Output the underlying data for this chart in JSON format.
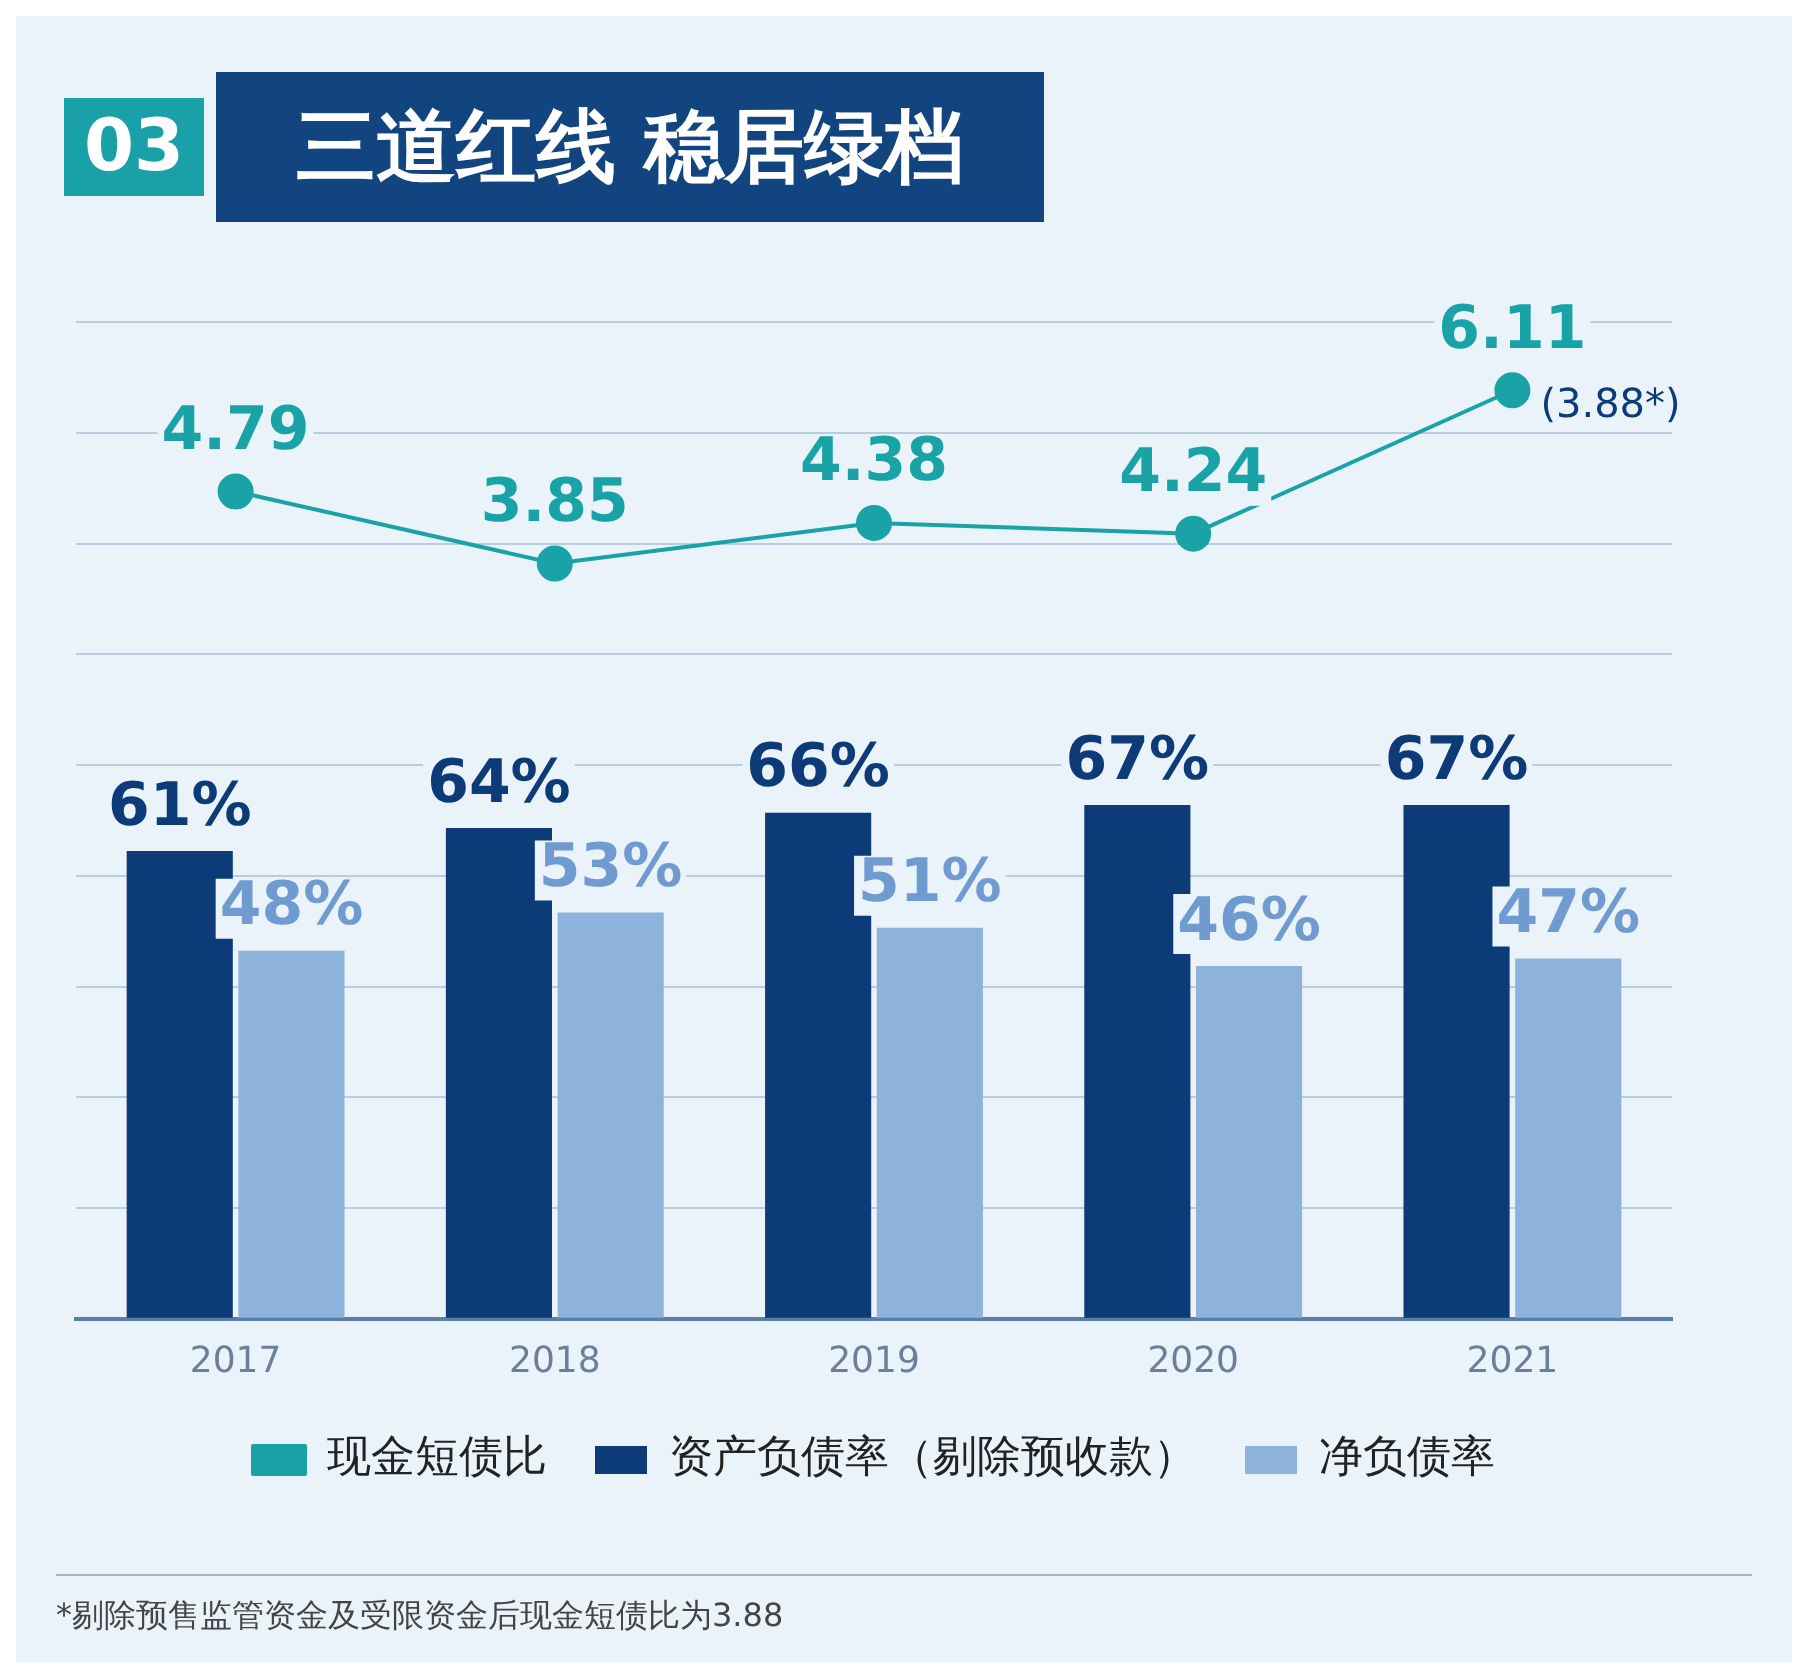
{
  "chart_data": {
    "type": "bar",
    "title": "三道红线 稳居绿档",
    "categories": [
      "2017",
      "2018",
      "2019",
      "2020",
      "2021"
    ],
    "series": [
      {
        "name": "资产负债率（剔除预收款）",
        "color": "#0d3b78",
        "values": [
          61,
          64,
          66,
          67,
          67
        ],
        "value_labels": [
          "61%",
          "64%",
          "66%",
          "67%",
          "67%"
        ]
      },
      {
        "name": "净负债率",
        "color": "#8db3dc",
        "values": [
          48,
          53,
          51,
          46,
          47
        ],
        "value_labels": [
          "48%",
          "53%",
          "51%",
          "46%",
          "47%"
        ]
      },
      {
        "name": "现金短债比",
        "type": "line",
        "axis": "y2",
        "color": "#19a3a6",
        "values": [
          4.79,
          3.85,
          4.38,
          4.24,
          6.11
        ],
        "value_labels": [
          "4.79",
          "3.85",
          "4.38",
          "4.24",
          "6.11"
        ],
        "marker": "circle"
      }
    ],
    "ylim": [
      0,
      130
    ],
    "y2lim": [
      -6,
      7
    ],
    "tick_labels": "x",
    "grid": "y",
    "legend": "bottom",
    "annotations": [
      "03",
      "(3.88*)",
      "*剔除预售监管资金及受限资金后现金短债比为3.88"
    ]
  }
}
